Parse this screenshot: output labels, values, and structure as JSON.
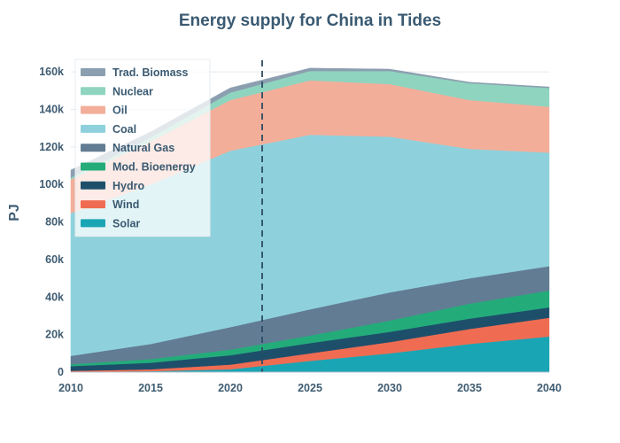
{
  "chart_data": {
    "type": "area",
    "stacked": true,
    "title": "Energy supply for China in Tides",
    "xlabel": "",
    "ylabel": "PJ",
    "x": [
      2010,
      2015,
      2020,
      2025,
      2030,
      2035,
      2040
    ],
    "xticks": [
      "2010",
      "2015",
      "2020",
      "2025",
      "2030",
      "2035",
      "2040"
    ],
    "ylim": [
      0,
      170000
    ],
    "yticks": [
      0,
      20000,
      40000,
      60000,
      80000,
      100000,
      120000,
      140000,
      160000
    ],
    "ytick_labels": [
      "0",
      "20k",
      "40k",
      "60k",
      "80k",
      "100k",
      "120k",
      "140k",
      "160k"
    ],
    "grid": true,
    "legend_position": "top-left",
    "reference_line": {
      "x": 2022,
      "style": "dashed"
    },
    "series": [
      {
        "name": "Solar",
        "color": "#1aa5b5",
        "values": [
          200,
          500,
          1500,
          6000,
          10000,
          15000,
          19000
        ]
      },
      {
        "name": "Wind",
        "color": "#ef6c52",
        "values": [
          500,
          1000,
          2500,
          4000,
          6000,
          8000,
          10000
        ]
      },
      {
        "name": "Hydro",
        "color": "#1d4f6b",
        "values": [
          2500,
          3500,
          5000,
          5500,
          5500,
          5500,
          5500
        ]
      },
      {
        "name": "Mod. Bioenergy",
        "color": "#23ac7a",
        "values": [
          1000,
          2000,
          3000,
          4000,
          6000,
          8000,
          9000
        ]
      },
      {
        "name": "Natural Gas",
        "color": "#627c93",
        "values": [
          4500,
          8000,
          12000,
          14000,
          15000,
          13500,
          13000
        ]
      },
      {
        "name": "Coal",
        "color": "#8ed1dc",
        "values": [
          76000,
          85000,
          94000,
          93000,
          83000,
          69000,
          60500
        ]
      },
      {
        "name": "Oil",
        "color": "#f3ae9a",
        "values": [
          18000,
          23000,
          27000,
          29000,
          28000,
          26000,
          24500
        ]
      },
      {
        "name": "Nuclear",
        "color": "#8fd4bf",
        "values": [
          1000,
          2000,
          4000,
          5000,
          7000,
          9000,
          10000
        ]
      },
      {
        "name": "Trad. Biomass",
        "color": "#8c9fb0",
        "values": [
          4000,
          3000,
          2500,
          1500,
          1000,
          500,
          500
        ]
      }
    ]
  }
}
